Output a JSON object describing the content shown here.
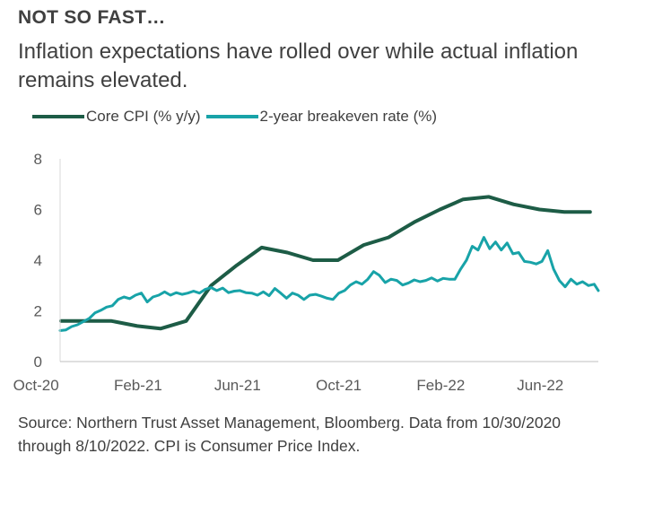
{
  "header": {
    "heading": "NOT SO FAST…",
    "subtitle": "Inflation expectations have rolled over while actual inflation remains elevated."
  },
  "legend": {
    "items": [
      {
        "label": "Core CPI (% y/y)",
        "color": "#1d5c46"
      },
      {
        "label": "2-year breakeven rate (%)",
        "color": "#18a3a8"
      }
    ]
  },
  "chart_data": {
    "type": "line",
    "title": "",
    "xlabel": "",
    "ylabel": "",
    "ylim": [
      0,
      8
    ],
    "yticks": [
      "0",
      "2",
      "4",
      "6",
      "8"
    ],
    "xticks": [
      "Oct-20",
      "Feb-21",
      "Jun-21",
      "Oct-21",
      "Feb-22",
      "Jun-22"
    ],
    "x_range": [
      "2020-10-30",
      "2022-08-10"
    ],
    "grid": false,
    "legend_position": "top",
    "series": [
      {
        "name": "Core CPI (% y/y)",
        "color": "#1d5c46",
        "points": [
          [
            "2020-10-31",
            1.6
          ],
          [
            "2020-11-30",
            1.6
          ],
          [
            "2020-12-31",
            1.6
          ],
          [
            "2021-01-31",
            1.4
          ],
          [
            "2021-02-28",
            1.3
          ],
          [
            "2021-03-31",
            1.6
          ],
          [
            "2021-04-30",
            3.0
          ],
          [
            "2021-05-31",
            3.8
          ],
          [
            "2021-06-30",
            4.5
          ],
          [
            "2021-07-31",
            4.3
          ],
          [
            "2021-08-31",
            4.0
          ],
          [
            "2021-09-30",
            4.0
          ],
          [
            "2021-10-31",
            4.6
          ],
          [
            "2021-11-30",
            4.9
          ],
          [
            "2021-12-31",
            5.5
          ],
          [
            "2022-01-31",
            6.0
          ],
          [
            "2022-02-28",
            6.4
          ],
          [
            "2022-03-31",
            6.5
          ],
          [
            "2022-04-30",
            6.2
          ],
          [
            "2022-05-31",
            6.0
          ],
          [
            "2022-06-30",
            5.9
          ],
          [
            "2022-07-31",
            5.9
          ]
        ]
      },
      {
        "name": "2-year breakeven rate (%)",
        "color": "#18a3a8",
        "points": [
          [
            "2020-10-30",
            1.22
          ],
          [
            "2020-11-06",
            1.25
          ],
          [
            "2020-11-13",
            1.38
          ],
          [
            "2020-11-20",
            1.45
          ],
          [
            "2020-11-27",
            1.58
          ],
          [
            "2020-12-04",
            1.7
          ],
          [
            "2020-12-11",
            1.92
          ],
          [
            "2020-12-18",
            2.02
          ],
          [
            "2020-12-25",
            2.15
          ],
          [
            "2021-01-01",
            2.2
          ],
          [
            "2021-01-08",
            2.45
          ],
          [
            "2021-01-15",
            2.55
          ],
          [
            "2021-01-22",
            2.48
          ],
          [
            "2021-01-29",
            2.62
          ],
          [
            "2021-02-05",
            2.7
          ],
          [
            "2021-02-12",
            2.35
          ],
          [
            "2021-02-19",
            2.55
          ],
          [
            "2021-02-26",
            2.62
          ],
          [
            "2021-03-05",
            2.75
          ],
          [
            "2021-03-12",
            2.62
          ],
          [
            "2021-03-19",
            2.72
          ],
          [
            "2021-03-26",
            2.65
          ],
          [
            "2021-04-02",
            2.7
          ],
          [
            "2021-04-09",
            2.78
          ],
          [
            "2021-04-16",
            2.7
          ],
          [
            "2021-04-23",
            2.85
          ],
          [
            "2021-04-30",
            2.92
          ],
          [
            "2021-05-07",
            2.8
          ],
          [
            "2021-05-14",
            2.9
          ],
          [
            "2021-05-21",
            2.72
          ],
          [
            "2021-05-28",
            2.78
          ],
          [
            "2021-06-04",
            2.8
          ],
          [
            "2021-06-11",
            2.72
          ],
          [
            "2021-06-18",
            2.7
          ],
          [
            "2021-06-25",
            2.62
          ],
          [
            "2021-07-02",
            2.75
          ],
          [
            "2021-07-09",
            2.6
          ],
          [
            "2021-07-16",
            2.88
          ],
          [
            "2021-07-23",
            2.7
          ],
          [
            "2021-07-30",
            2.5
          ],
          [
            "2021-08-06",
            2.7
          ],
          [
            "2021-08-13",
            2.62
          ],
          [
            "2021-08-20",
            2.45
          ],
          [
            "2021-08-27",
            2.62
          ],
          [
            "2021-09-03",
            2.65
          ],
          [
            "2021-09-10",
            2.58
          ],
          [
            "2021-09-17",
            2.5
          ],
          [
            "2021-09-24",
            2.45
          ],
          [
            "2021-10-01",
            2.7
          ],
          [
            "2021-10-08",
            2.8
          ],
          [
            "2021-10-15",
            3.02
          ],
          [
            "2021-10-22",
            3.15
          ],
          [
            "2021-10-29",
            3.05
          ],
          [
            "2021-11-05",
            3.25
          ],
          [
            "2021-11-12",
            3.55
          ],
          [
            "2021-11-19",
            3.4
          ],
          [
            "2021-11-26",
            3.12
          ],
          [
            "2021-12-03",
            3.25
          ],
          [
            "2021-12-10",
            3.2
          ],
          [
            "2021-12-17",
            3.02
          ],
          [
            "2021-12-24",
            3.1
          ],
          [
            "2021-12-31",
            3.22
          ],
          [
            "2022-01-07",
            3.15
          ],
          [
            "2022-01-14",
            3.2
          ],
          [
            "2022-01-21",
            3.3
          ],
          [
            "2022-01-28",
            3.18
          ],
          [
            "2022-02-04",
            3.28
          ],
          [
            "2022-02-11",
            3.25
          ],
          [
            "2022-02-18",
            3.25
          ],
          [
            "2022-02-25",
            3.65
          ],
          [
            "2022-03-04",
            4.0
          ],
          [
            "2022-03-11",
            4.55
          ],
          [
            "2022-03-18",
            4.4
          ],
          [
            "2022-03-25",
            4.9
          ],
          [
            "2022-04-01",
            4.45
          ],
          [
            "2022-04-08",
            4.72
          ],
          [
            "2022-04-15",
            4.4
          ],
          [
            "2022-04-22",
            4.68
          ],
          [
            "2022-04-29",
            4.25
          ],
          [
            "2022-05-06",
            4.3
          ],
          [
            "2022-05-13",
            3.95
          ],
          [
            "2022-05-20",
            3.92
          ],
          [
            "2022-05-27",
            3.85
          ],
          [
            "2022-06-03",
            3.95
          ],
          [
            "2022-06-10",
            4.38
          ],
          [
            "2022-06-17",
            3.65
          ],
          [
            "2022-06-24",
            3.2
          ],
          [
            "2022-07-01",
            2.95
          ],
          [
            "2022-07-08",
            3.25
          ],
          [
            "2022-07-15",
            3.05
          ],
          [
            "2022-07-22",
            3.15
          ],
          [
            "2022-07-29",
            3.0
          ],
          [
            "2022-08-05",
            3.05
          ],
          [
            "2022-08-10",
            2.8
          ]
        ]
      }
    ]
  },
  "footer": {
    "source": "Source: Northern Trust Asset Management, Bloomberg. Data from 10/30/2020 through 8/10/2022. CPI is Consumer Price Index."
  }
}
